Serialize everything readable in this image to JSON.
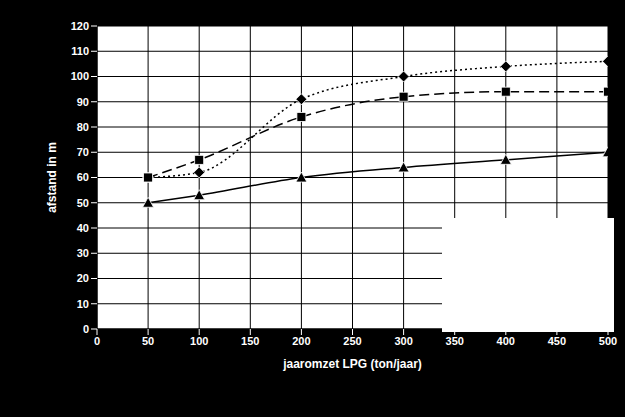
{
  "chart_data": {
    "type": "line",
    "x_label": "jaaromzet LPG (ton/jaar)",
    "y_label": "afstand in m",
    "x": [
      50,
      100,
      200,
      300,
      400,
      500
    ],
    "series": [
      {
        "color": "#000000",
        "marker": "diamond",
        "line_style": "dotted",
        "values": [
          60,
          62,
          91,
          100,
          104,
          106
        ]
      },
      {
        "color": "#000000",
        "marker": "square",
        "line_style": "dashed",
        "values": [
          60,
          67,
          84,
          92,
          94,
          94
        ]
      },
      {
        "color": "#000000",
        "marker": "triangle",
        "line_style": "solid",
        "values": [
          50,
          53,
          60,
          64,
          67,
          70
        ]
      }
    ],
    "xlim": [
      0,
      500
    ],
    "xticks": [
      0,
      50,
      100,
      150,
      200,
      250,
      300,
      350,
      400,
      450,
      500
    ],
    "ylim": [
      0,
      120
    ],
    "yticks": [
      0,
      10,
      20,
      30,
      40,
      50,
      60,
      70,
      80,
      90,
      100,
      110,
      120
    ],
    "grid": true
  }
}
